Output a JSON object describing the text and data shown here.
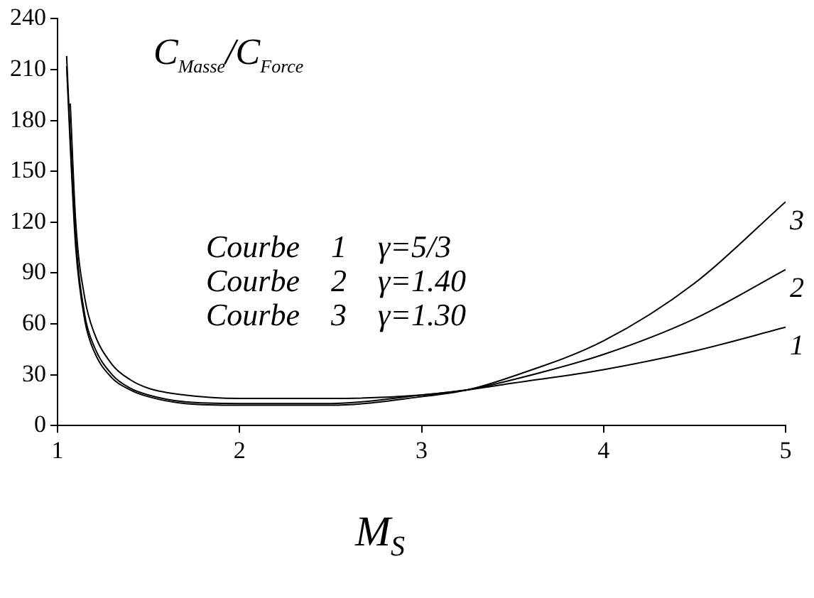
{
  "chart_data": {
    "type": "line",
    "xlabel": "M$_{S}$",
    "ylabel": "C$_{Masse}$/C$_{Force}$",
    "xlim": [
      1,
      5
    ],
    "xticks": [
      1,
      2,
      3,
      4,
      5
    ],
    "ylim": [
      0,
      240
    ],
    "yticks": [
      0,
      30,
      60,
      90,
      120,
      150,
      180,
      210,
      240
    ],
    "grid": false,
    "legend": false,
    "marker": "none",
    "line_style": "solid",
    "annotations": [
      "Courbe    1    γ=5/3",
      "Courbe    2    γ=1.40",
      "Courbe    3    γ=1.30"
    ],
    "series": [
      {
        "name": "1",
        "color": "#000000",
        "x": [
          1.07,
          1.1,
          1.15,
          1.2,
          1.3,
          1.4,
          1.5,
          1.7,
          2,
          2.5,
          3,
          3.25,
          3.5,
          4,
          4.5,
          5
        ],
        "values": [
          190,
          120,
          75,
          55,
          36,
          27,
          22,
          18,
          16,
          16,
          18,
          21,
          25,
          33,
          44,
          58
        ]
      },
      {
        "name": "2",
        "color": "#000000",
        "x": [
          1.05,
          1.07,
          1.1,
          1.15,
          1.2,
          1.3,
          1.4,
          1.5,
          1.7,
          2,
          2.5,
          3,
          3.25,
          3.5,
          4,
          4.5,
          5
        ],
        "values": [
          218,
          170,
          110,
          65,
          47,
          30,
          22,
          18,
          14,
          13,
          13,
          18,
          21,
          27,
          42,
          63,
          92
        ]
      },
      {
        "name": "3",
        "color": "#000000",
        "x": [
          1.05,
          1.07,
          1.1,
          1.15,
          1.2,
          1.3,
          1.4,
          1.5,
          1.7,
          2,
          2.5,
          3,
          3.25,
          3.5,
          4,
          4.5,
          5
        ],
        "values": [
          212,
          165,
          105,
          62,
          44,
          28,
          21,
          17,
          13,
          12,
          12,
          17,
          21,
          29,
          50,
          84,
          132
        ]
      }
    ]
  }
}
